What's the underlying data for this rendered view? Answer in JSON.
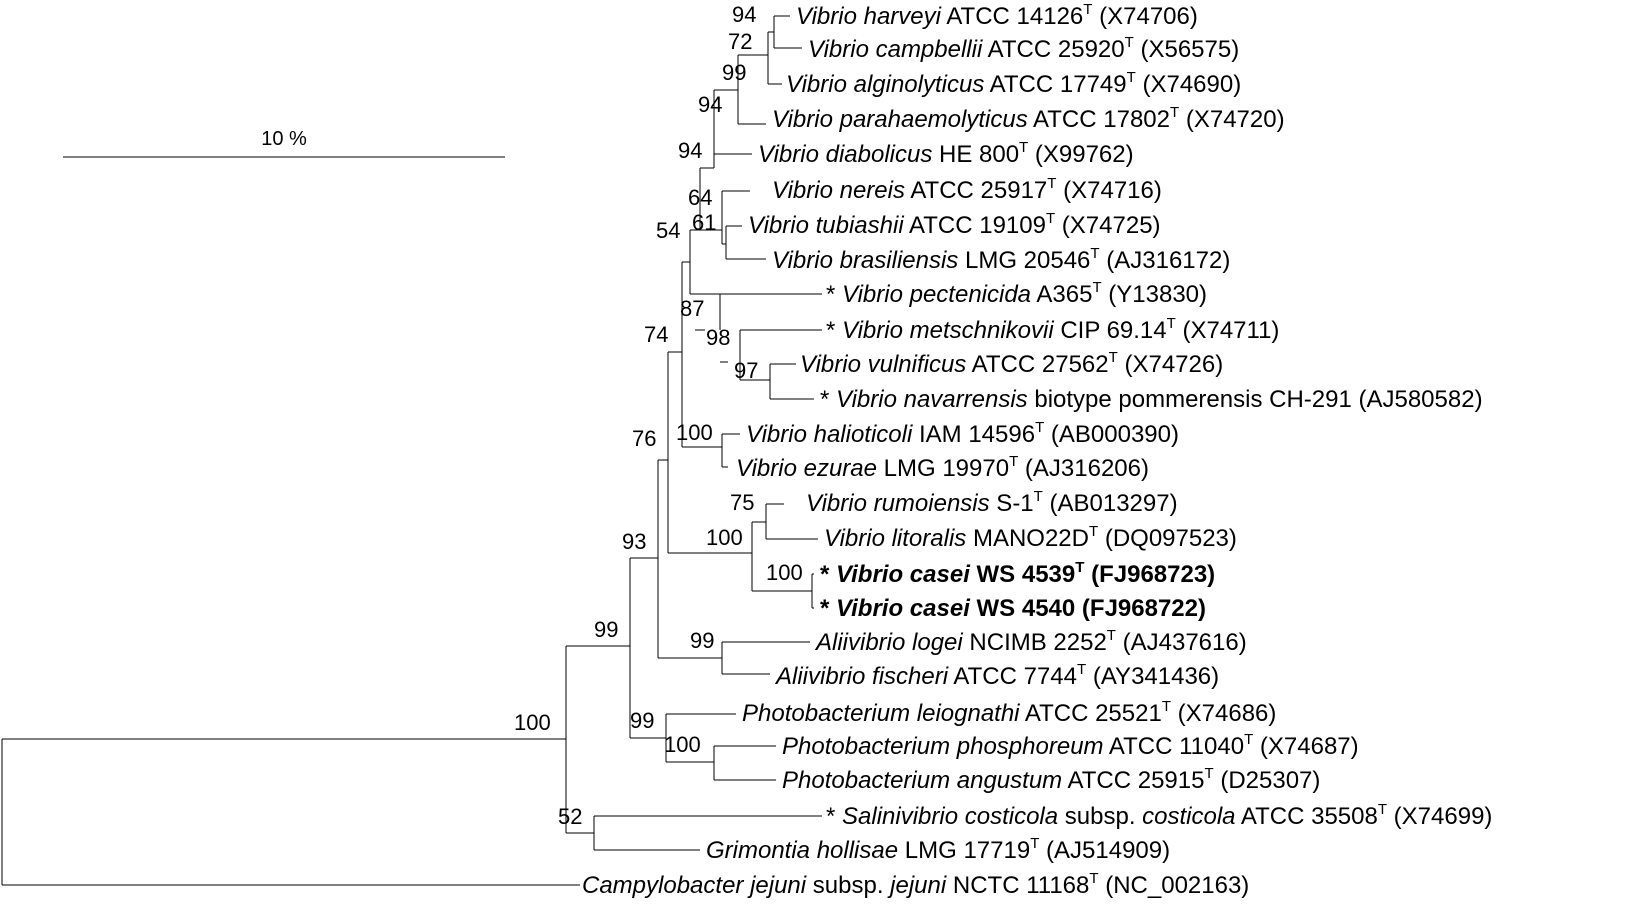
{
  "scale_bar": {
    "label": "10 %"
  },
  "taxa": [
    {
      "id": "t1",
      "prefix": "",
      "genus_species": "Vibrio harveyi",
      "rest": " ATCC 14126",
      "sup": "T",
      "accession": " (X74706)",
      "bold": false
    },
    {
      "id": "t2",
      "prefix": "",
      "genus_species": "Vibrio campbellii",
      "rest": " ATCC 25920",
      "sup": "T",
      "accession": " (X56575)",
      "bold": false
    },
    {
      "id": "t3",
      "prefix": "",
      "genus_species": "Vibrio alginolyticus",
      "rest": " ATCC 17749",
      "sup": "T",
      "accession": " (X74690)",
      "bold": false
    },
    {
      "id": "t4",
      "prefix": "",
      "genus_species": "Vibrio parahaemolyticus",
      "rest": " ATCC 17802",
      "sup": "T",
      "accession": " (X74720)",
      "bold": false
    },
    {
      "id": "t5",
      "prefix": "",
      "genus_species": "Vibrio diabolicus",
      "rest": " HE 800",
      "sup": "T",
      "accession": " (X99762)",
      "bold": false
    },
    {
      "id": "t6",
      "prefix": "",
      "genus_species": "Vibrio nereis",
      "rest": " ATCC 25917",
      "sup": "T",
      "accession": " (X74716)",
      "bold": false
    },
    {
      "id": "t7",
      "prefix": "",
      "genus_species": "Vibrio tubiashii",
      "rest": " ATCC 19109",
      "sup": "T",
      "accession": " (X74725)",
      "bold": false
    },
    {
      "id": "t8",
      "prefix": "",
      "genus_species": "Vibrio brasiliensis",
      "rest": " LMG 20546",
      "sup": "T",
      "accession": " (AJ316172)",
      "bold": false
    },
    {
      "id": "t9",
      "prefix": "* ",
      "genus_species": "Vibrio pectenicida",
      "rest": " A365",
      "sup": "T",
      "accession": " (Y13830)",
      "bold": false
    },
    {
      "id": "t10",
      "prefix": "* ",
      "genus_species": "Vibrio metschnikovii",
      "rest": " CIP 69.14",
      "sup": "T",
      "accession": " (X74711)",
      "bold": false
    },
    {
      "id": "t11",
      "prefix": "",
      "genus_species": "Vibrio vulnificus",
      "rest": " ATCC 27562",
      "sup": "T",
      "accession": " (X74726)",
      "bold": false
    },
    {
      "id": "t12",
      "prefix": "* ",
      "genus_species": "Vibrio navarrensis",
      "rest": " biotype pommerensis CH-291 (AJ580582)",
      "sup": "",
      "accession": "",
      "bold": false
    },
    {
      "id": "t13",
      "prefix": "",
      "genus_species": "Vibrio halioticoli",
      "rest": " IAM 14596",
      "sup": "T",
      "accession": " (AB000390)",
      "bold": false
    },
    {
      "id": "t14",
      "prefix": "",
      "genus_species": "Vibrio ezurae",
      "rest": " LMG 19970",
      "sup": "T",
      "accession": " (AJ316206)",
      "bold": false
    },
    {
      "id": "t15",
      "prefix": "",
      "genus_species": "Vibrio rumoiensis",
      "rest": " S-1",
      "sup": "T",
      "accession": " (AB013297)",
      "bold": false
    },
    {
      "id": "t16",
      "prefix": "",
      "genus_species": "Vibrio litoralis",
      "rest": " MANO22D",
      "sup": "T",
      "accession": " (DQ097523)",
      "bold": false
    },
    {
      "id": "t17",
      "prefix": "* ",
      "genus_species": "Vibrio casei",
      "rest": " WS 4539",
      "sup": "T",
      "accession": " (FJ968723)",
      "bold": true
    },
    {
      "id": "t18",
      "prefix": "* ",
      "genus_species": "Vibrio casei",
      "rest": " WS 4540 (FJ968722)",
      "sup": "",
      "accession": "",
      "bold": true
    },
    {
      "id": "t19",
      "prefix": "",
      "genus_species": "Aliivibrio logei",
      "rest": " NCIMB 2252",
      "sup": "T",
      "accession": " (AJ437616)",
      "bold": false
    },
    {
      "id": "t20",
      "prefix": "",
      "genus_species": "Aliivibrio fischeri",
      "rest": " ATCC 7744",
      "sup": "T",
      "accession": " (AY341436)",
      "bold": false
    },
    {
      "id": "t21",
      "prefix": "",
      "genus_species": "Photobacterium leiognathi",
      "rest": " ATCC 25521",
      "sup": "T",
      "accession": " (X74686)",
      "bold": false
    },
    {
      "id": "t22",
      "prefix": "",
      "genus_species": "Photobacterium phosphoreum",
      "rest": " ATCC 11040",
      "sup": "T",
      "accession": " (X74687)",
      "bold": false
    },
    {
      "id": "t23",
      "prefix": "",
      "genus_species": "Photobacterium angustum",
      "rest": " ATCC 25915",
      "sup": "T",
      "accession": " (D25307)",
      "bold": false
    },
    {
      "id": "t24",
      "prefix": "* ",
      "genus_species": "Salinivibrio costicola",
      "rest": " subsp. ",
      "extra_italic": "costicola",
      "rest2": " ATCC 35508",
      "sup": "T",
      "accession": " (X74699)",
      "bold": false
    },
    {
      "id": "t25",
      "prefix": "",
      "genus_species": "Grimontia hollisae",
      "rest": " LMG 17719",
      "sup": "T",
      "accession": " (AJ514909)",
      "bold": false
    },
    {
      "id": "t26",
      "prefix": "",
      "genus_species": "Campylobacter jejuni",
      "rest": " subsp. ",
      "extra_italic": "jejuni",
      "rest2": " NCTC 11168",
      "sup": "T",
      "accession": " (NC_002163)",
      "bold": false
    }
  ],
  "bootstrap": {
    "b94a": "94",
    "b72": "72",
    "b99a": "99",
    "b94b": "94",
    "b94c": "94",
    "b64": "64",
    "b61": "61",
    "b54": "54",
    "b87": "87",
    "b98": "98",
    "b97": "97",
    "b74": "74",
    "b100a": "100",
    "b76": "76",
    "b75": "75",
    "b100b": "100",
    "b100c": "100",
    "b93": "93",
    "b99b": "99",
    "b99c": "99",
    "b99d": "99",
    "b100d": "100",
    "b100e": "100",
    "b52": "52"
  }
}
